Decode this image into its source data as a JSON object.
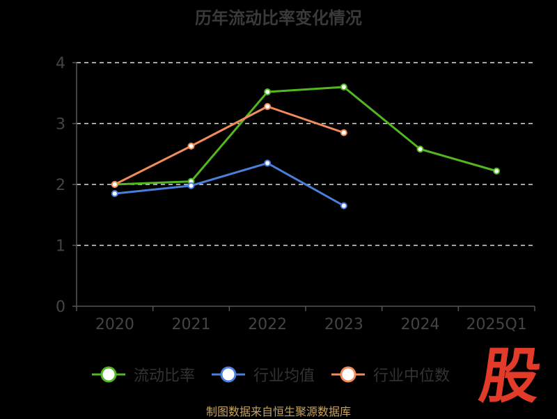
{
  "title": "历年流动比率变化情况",
  "source": "制图数据来自恒生聚源数据库",
  "logo_text": "股",
  "colors": {
    "background": "#000000",
    "axis": "#555555",
    "grid": "#dddddd",
    "tick_label": "#444444",
    "liquidity": "#52b821",
    "industry_mean": "#4a7fdc",
    "industry_median": "#f28c5a"
  },
  "legend": [
    {
      "label": "流动比率",
      "color": "#52b821"
    },
    {
      "label": "行业均值",
      "color": "#4a7fdc"
    },
    {
      "label": "行业中位数",
      "color": "#f28c5a"
    }
  ],
  "chart_data": {
    "type": "line",
    "title": "历年流动比率变化情况",
    "categories": [
      "2020",
      "2021",
      "2022",
      "2023",
      "2024",
      "2025Q1"
    ],
    "ylim": [
      0,
      4
    ],
    "yticks": [
      "0",
      "1",
      "2",
      "3",
      "4"
    ],
    "grid": true,
    "legend_position": "bottom",
    "series": [
      {
        "name": "流动比率",
        "color": "#52b821",
        "values": [
          2.0,
          2.05,
          3.52,
          3.6,
          2.58,
          2.22
        ]
      },
      {
        "name": "行业均值",
        "color": "#4a7fdc",
        "values": [
          1.85,
          1.98,
          2.35,
          1.65,
          null,
          null
        ]
      },
      {
        "name": "行业中位数",
        "color": "#f28c5a",
        "values": [
          2.0,
          2.63,
          3.28,
          2.85,
          null,
          null
        ]
      }
    ]
  }
}
